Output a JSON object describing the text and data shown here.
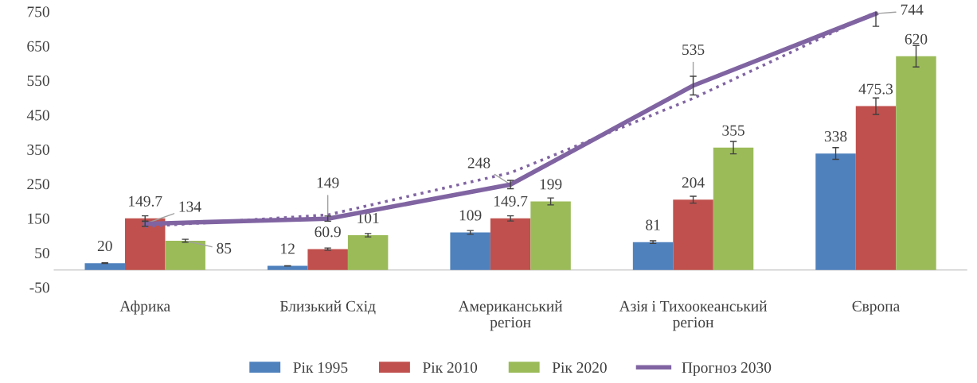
{
  "chart_data": {
    "type": "bar",
    "categories": [
      "Африка",
      "Близький Схід",
      "Американський регіон",
      "Азія і Тихоокеанський регіон",
      "Європа"
    ],
    "series": [
      {
        "name": "Рік 1995",
        "color": "#4f81bd",
        "values": [
          20,
          12,
          109,
          81,
          338
        ],
        "errors": [
          1,
          0.6,
          5.5,
          4,
          17
        ],
        "value_labels": [
          "20",
          "12",
          "109",
          "81",
          "338"
        ]
      },
      {
        "name": "Рік 2010",
        "color": "#c0504d",
        "values": [
          149.7,
          60.9,
          149.7,
          204,
          475.3
        ],
        "errors": [
          7.5,
          3,
          7.5,
          10,
          24
        ],
        "value_labels": [
          "149.7",
          "60.9",
          "149.7",
          "204",
          "475.3"
        ]
      },
      {
        "name": "Рік 2020",
        "color": "#9bbb59",
        "values": [
          85,
          101,
          199,
          355,
          620
        ],
        "errors": [
          4.3,
          5,
          10,
          18,
          31
        ],
        "value_labels": [
          "85",
          "101",
          "199",
          "355",
          "620"
        ]
      },
      {
        "name": "Прогноз 2030",
        "type": "line",
        "color": "#8064a2",
        "values": [
          134,
          149,
          248,
          535,
          744
        ],
        "errors": [
          7,
          7.5,
          12,
          27,
          37
        ],
        "value_labels": [
          "134",
          "149",
          "248",
          "535",
          "744"
        ]
      },
      {
        "type": "line",
        "color": "#8064a2",
        "line_style": "dotted",
        "values": [
          126,
          160,
          282,
          498,
          748
        ]
      }
    ],
    "ylim": [
      -50,
      750
    ],
    "yticks": [
      -50,
      50,
      150,
      250,
      350,
      450,
      550,
      650,
      750
    ],
    "legend": "bottom",
    "grid": false
  }
}
